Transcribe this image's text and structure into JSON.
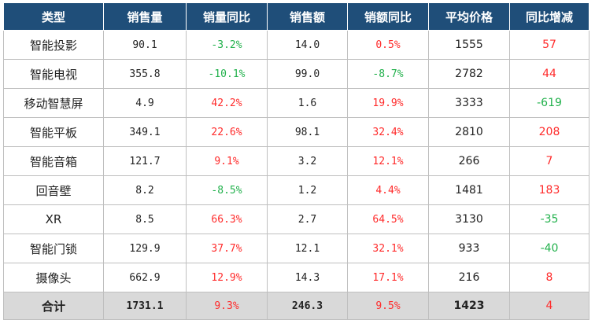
{
  "colors": {
    "header_bg": "#1f4e79",
    "positive": "#ff2b2b",
    "negative": "#22b14c",
    "total_bg": "#d9d9d9"
  },
  "headers": [
    "类型",
    "销售量",
    "销量同比",
    "销售额",
    "销额同比",
    "平均价格",
    "同比增减"
  ],
  "rows": [
    [
      "智能投影",
      "90.1",
      "-3.2%",
      "14.0",
      "0.5%",
      "1555",
      "57"
    ],
    [
      "智能电视",
      "355.8",
      "-10.1%",
      "99.0",
      "-8.7%",
      "2782",
      "44"
    ],
    [
      "移动智慧屏",
      "4.9",
      "42.2%",
      "1.6",
      "19.9%",
      "3333",
      "-619"
    ],
    [
      "智能平板",
      "349.1",
      "22.6%",
      "98.1",
      "32.4%",
      "2810",
      "208"
    ],
    [
      "智能音箱",
      "121.7",
      "9.1%",
      "3.2",
      "12.1%",
      "266",
      "7"
    ],
    [
      "回音壁",
      "8.2",
      "-8.5%",
      "1.2",
      "4.4%",
      "1481",
      "183"
    ],
    [
      "XR",
      "8.5",
      "66.3%",
      "2.7",
      "64.5%",
      "3130",
      "-35"
    ],
    [
      "智能门锁",
      "129.9",
      "37.7%",
      "12.1",
      "32.1%",
      "933",
      "-40"
    ],
    [
      "摄像头",
      "662.9",
      "12.9%",
      "14.3",
      "17.1%",
      "216",
      "8"
    ]
  ],
  "total": [
    "合计",
    "1731.1",
    "9.3%",
    "246.3",
    "9.5%",
    "1423",
    "4"
  ]
}
